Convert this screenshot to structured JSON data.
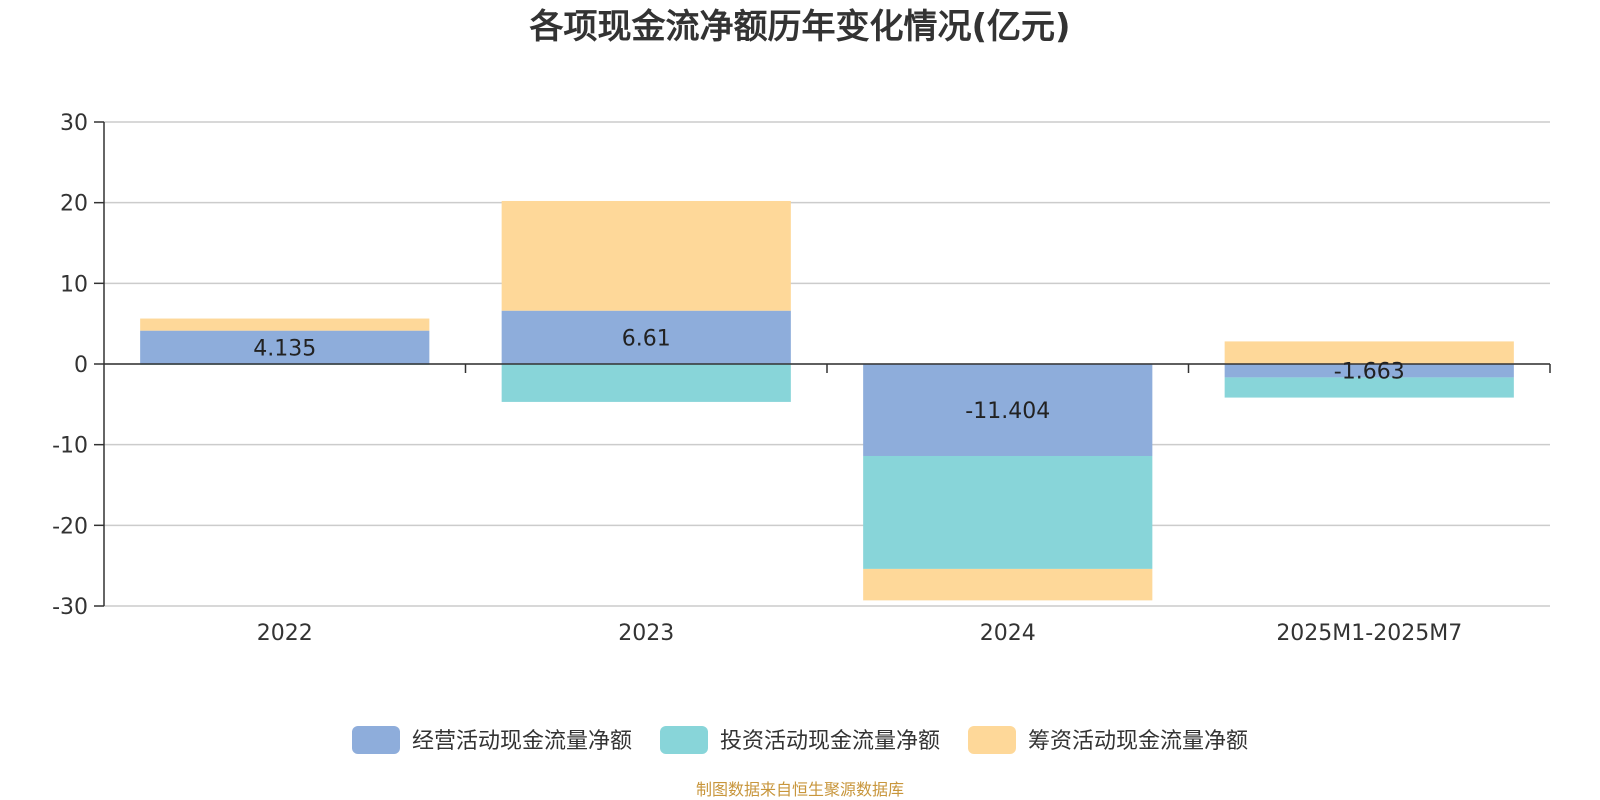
{
  "chart_data": {
    "type": "bar",
    "stacked": true,
    "title": "各项现金流净额历年变化情况(亿元)",
    "categories": [
      "2022",
      "2023",
      "2024",
      "2025M1-2025M7"
    ],
    "ylim": [
      -30,
      30
    ],
    "yticks": [
      30,
      20,
      10,
      0,
      -10,
      -20,
      -30
    ],
    "grid": true,
    "legend_position": "bottom-center",
    "series": [
      {
        "name": "经营活动现金流量净额",
        "color": "#8eaddb",
        "values": [
          4.135,
          6.61,
          -11.404,
          -1.663
        ]
      },
      {
        "name": "投资活动现金流量净额",
        "color": "#88d5d9",
        "values": [
          -0.1,
          -4.7,
          -14.0,
          -2.5
        ]
      },
      {
        "name": "筹资活动现金流量净额",
        "color": "#fed899",
        "values": [
          1.5,
          13.6,
          -3.9,
          2.8
        ]
      }
    ],
    "data_labels": [
      "4.135",
      "6.61",
      "-11.404",
      "-1.663"
    ],
    "source": "制图数据来自恒生聚源数据库",
    "source_color": "#c8963c"
  }
}
